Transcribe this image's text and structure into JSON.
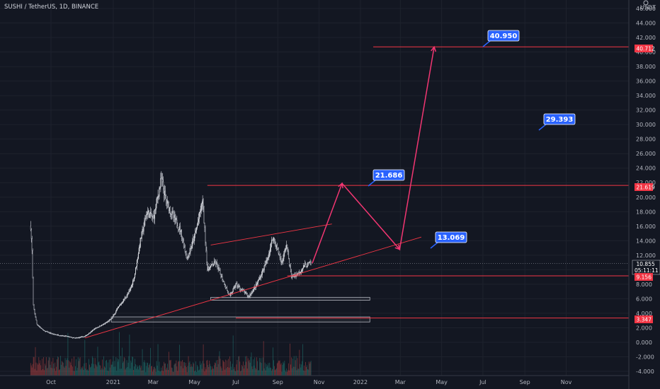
{
  "chart_data": {
    "type": "candlestick",
    "title": "SUSHI / TetherUS, 1D, BINANCE",
    "currency": "USDT",
    "ylim": [
      -4,
      46
    ],
    "y_ticks": [
      "46.000",
      "44.000",
      "42.000",
      "40.000",
      "38.000",
      "36.000",
      "34.000",
      "32.000",
      "30.000",
      "28.000",
      "26.000",
      "24.000",
      "22.000",
      "20.000",
      "18.000",
      "16.000",
      "14.000",
      "12.000",
      "10.000",
      "8.000",
      "6.000",
      "4.000",
      "2.000",
      "0.000",
      "-2.000",
      "-4.000"
    ],
    "x_ticks": [
      "Oct",
      "2021",
      "Mar",
      "May",
      "Jul",
      "Sep",
      "Nov",
      "2022",
      "Mar",
      "May",
      "Jul",
      "Sep",
      "Nov"
    ],
    "grid": true,
    "colors": {
      "background": "#131722",
      "candle_up": "#ffffff",
      "candle_down": "#131722",
      "line": "#f23645",
      "callout": "#2962ff",
      "volume_up": "#26a69a",
      "volume_down": "#ef5350"
    },
    "price_path": [
      {
        "date": "2020-09-01",
        "price": 16.0
      },
      {
        "date": "2020-09-03",
        "price": 12.5
      },
      {
        "date": "2020-09-05",
        "price": 5.0
      },
      {
        "date": "2020-09-10",
        "price": 2.5
      },
      {
        "date": "2020-09-20",
        "price": 1.6
      },
      {
        "date": "2020-10-05",
        "price": 1.1
      },
      {
        "date": "2020-10-25",
        "price": 0.8
      },
      {
        "date": "2020-11-05",
        "price": 0.55
      },
      {
        "date": "2020-11-20",
        "price": 0.8
      },
      {
        "date": "2020-12-05",
        "price": 1.9
      },
      {
        "date": "2020-12-20",
        "price": 2.6
      },
      {
        "date": "2020-12-29",
        "price": 3.2
      },
      {
        "date": "2021-01-10",
        "price": 5.0
      },
      {
        "date": "2021-01-25",
        "price": 7.0
      },
      {
        "date": "2021-02-01",
        "price": 9.0
      },
      {
        "date": "2021-02-10",
        "price": 14.0
      },
      {
        "date": "2021-02-20",
        "price": 18.0
      },
      {
        "date": "2021-03-01",
        "price": 17.0
      },
      {
        "date": "2021-03-13",
        "price": 22.5
      },
      {
        "date": "2021-03-20",
        "price": 19.5
      },
      {
        "date": "2021-04-01",
        "price": 17.0
      },
      {
        "date": "2021-04-10",
        "price": 15.5
      },
      {
        "date": "2021-04-20",
        "price": 11.5
      },
      {
        "date": "2021-05-01",
        "price": 14.5
      },
      {
        "date": "2021-05-13",
        "price": 19.5
      },
      {
        "date": "2021-05-20",
        "price": 10.0
      },
      {
        "date": "2021-06-01",
        "price": 11.0
      },
      {
        "date": "2021-06-10",
        "price": 9.0
      },
      {
        "date": "2021-06-22",
        "price": 6.3
      },
      {
        "date": "2021-07-01",
        "price": 8.0
      },
      {
        "date": "2021-07-20",
        "price": 6.3
      },
      {
        "date": "2021-08-01",
        "price": 8.0
      },
      {
        "date": "2021-08-15",
        "price": 11.0
      },
      {
        "date": "2021-08-25",
        "price": 14.5
      },
      {
        "date": "2021-09-07",
        "price": 11.0
      },
      {
        "date": "2021-09-14",
        "price": 13.5
      },
      {
        "date": "2021-09-21",
        "price": 9.0
      },
      {
        "date": "2021-10-01",
        "price": 9.5
      },
      {
        "date": "2021-10-10",
        "price": 10.5
      },
      {
        "date": "2021-10-20",
        "price": 10.9
      }
    ],
    "annotations": {
      "callouts": [
        "40.950",
        "29.393",
        "21.686",
        "13.069"
      ],
      "price_tags": {
        "level_1": "40.712",
        "level_2": "21.619",
        "current": "10.855",
        "countdown": "05:11:11",
        "level_3": "9.156",
        "level_4": "3.347"
      },
      "callout_values": [
        40.95,
        29.393,
        21.686,
        13.069
      ],
      "horizontal_levels": [
        40.712,
        21.619,
        9.156,
        3.347
      ],
      "current_price": 10.855,
      "projection_path": [
        {
          "date": "2021-10-22",
          "price": 10.9
        },
        {
          "date": "2021-12-05",
          "price": 21.9
        },
        {
          "date": "2022-02-28",
          "price": 12.8
        },
        {
          "date": "2022-04-20",
          "price": 40.7
        }
      ],
      "support_zones": [
        {
          "from": "2021-05-25",
          "to": "2022-01-15",
          "low": 5.8,
          "high": 6.2
        },
        {
          "from": "2020-12-29",
          "to": "2022-01-15",
          "low": 2.8,
          "high": 3.5
        }
      ],
      "trendlines": [
        {
          "from": {
            "date": "2020-11-20",
            "price": 0.6
          },
          "to": {
            "date": "2022-04-01",
            "price": 14.5
          }
        },
        {
          "from": {
            "date": "2021-05-25",
            "price": 13.4
          },
          "to": {
            "date": "2021-11-20",
            "price": 16.3
          }
        }
      ]
    }
  }
}
